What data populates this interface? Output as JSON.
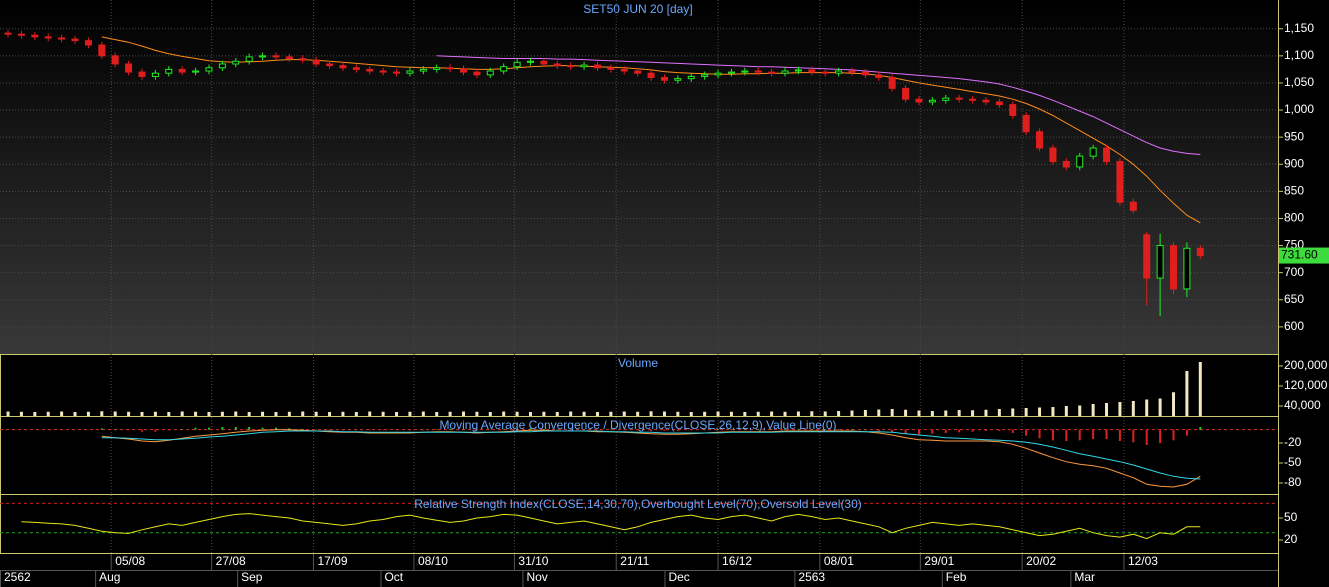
{
  "chart_data": [
    {
      "type": "candlestick",
      "title": "SET50 JUN 20   [day]",
      "grid": true,
      "xlim": [
        -0.6,
        94.8
      ],
      "xticks": [
        {
          "value": 7.7,
          "label": "05/08"
        },
        {
          "value": 15.2,
          "label": "27/08"
        },
        {
          "value": 22.8,
          "label": "17/09"
        },
        {
          "value": 30.3,
          "label": "08/10"
        },
        {
          "value": 37.8,
          "label": "31/10"
        },
        {
          "value": 45.4,
          "label": "21/11"
        },
        {
          "value": 53,
          "label": "16/12"
        },
        {
          "value": 60.6,
          "label": "08/01"
        },
        {
          "value": 68.1,
          "label": "29/01"
        },
        {
          "value": 75.7,
          "label": "20/02"
        },
        {
          "value": 83.3,
          "label": "12/03"
        }
      ],
      "period_ticks": [
        {
          "value": -0.6,
          "label": "2562"
        },
        {
          "value": 6.5,
          "label": "Aug"
        },
        {
          "value": 17.1,
          "label": "Sep"
        },
        {
          "value": 27.8,
          "label": "Oct"
        },
        {
          "value": 38.4,
          "label": "Nov"
        },
        {
          "value": 49,
          "label": "Dec"
        },
        {
          "value": 58.7,
          "label": "2563"
        },
        {
          "value": 69.7,
          "label": "Feb"
        },
        {
          "value": 79.3,
          "label": "Mar"
        }
      ],
      "ylim": [
        550,
        1203
      ],
      "yticks": [
        600,
        650,
        700,
        750,
        800,
        850,
        900,
        950,
        {
          "value": 1000,
          "label": "1,000"
        },
        {
          "value": 1050,
          "label": "1,050"
        },
        {
          "value": 1100,
          "label": "1,100"
        },
        {
          "value": 1150,
          "label": "1,150"
        }
      ],
      "up_color": "#22ee22",
      "down_color": "#e01e1e",
      "open": [
        1142,
        1140,
        1138,
        1135,
        1133,
        1131,
        1128,
        1120,
        1100,
        1085,
        1070,
        1062,
        1068,
        1075,
        1070,
        1072,
        1078,
        1085,
        1090,
        1098,
        1100,
        1098,
        1095,
        1092,
        1085,
        1082,
        1078,
        1075,
        1072,
        1070,
        1068,
        1072,
        1075,
        1078,
        1076,
        1070,
        1065,
        1072,
        1080,
        1088,
        1090,
        1085,
        1082,
        1080,
        1083,
        1078,
        1075,
        1072,
        1068,
        1060,
        1055,
        1058,
        1062,
        1065,
        1068,
        1070,
        1072,
        1070,
        1068,
        1072,
        1074,
        1070,
        1068,
        1072,
        1070,
        1065,
        1060,
        1040,
        1020,
        1015,
        1018,
        1022,
        1020,
        1018,
        1015,
        1010,
        990,
        960,
        930,
        905,
        895,
        915,
        930,
        905,
        830,
        770,
        690,
        750,
        670,
        745
      ],
      "high": [
        1148,
        1146,
        1144,
        1141,
        1139,
        1137,
        1134,
        1126,
        1106,
        1091,
        1076,
        1074,
        1081,
        1081,
        1078,
        1084,
        1091,
        1096,
        1104,
        1106,
        1106,
        1104,
        1101,
        1098,
        1091,
        1088,
        1084,
        1081,
        1078,
        1076,
        1078,
        1081,
        1084,
        1084,
        1082,
        1076,
        1078,
        1086,
        1094,
        1096,
        1096,
        1091,
        1088,
        1089,
        1089,
        1084,
        1081,
        1078,
        1074,
        1066,
        1064,
        1068,
        1071,
        1074,
        1076,
        1078,
        1078,
        1076,
        1078,
        1080,
        1080,
        1076,
        1078,
        1078,
        1076,
        1071,
        1066,
        1046,
        1026,
        1024,
        1028,
        1028,
        1026,
        1024,
        1021,
        1016,
        996,
        966,
        936,
        911,
        921,
        936,
        936,
        911,
        836,
        775,
        772,
        756,
        756,
        751
      ],
      "low": [
        1134,
        1132,
        1129,
        1127,
        1125,
        1122,
        1114,
        1094,
        1079,
        1064,
        1056,
        1056,
        1062,
        1064,
        1064,
        1066,
        1072,
        1079,
        1084,
        1092,
        1092,
        1089,
        1086,
        1079,
        1076,
        1072,
        1069,
        1066,
        1064,
        1062,
        1062,
        1066,
        1069,
        1070,
        1064,
        1059,
        1059,
        1066,
        1074,
        1082,
        1079,
        1076,
        1074,
        1074,
        1072,
        1069,
        1066,
        1062,
        1054,
        1049,
        1049,
        1052,
        1056,
        1059,
        1062,
        1064,
        1064,
        1062,
        1062,
        1066,
        1064,
        1062,
        1062,
        1064,
        1059,
        1054,
        1034,
        1014,
        1009,
        1009,
        1012,
        1014,
        1012,
        1009,
        1004,
        984,
        954,
        924,
        899,
        889,
        889,
        909,
        899,
        824,
        809,
        640,
        620,
        660,
        655,
        725
      ],
      "close": [
        1140,
        1138,
        1135,
        1133,
        1131,
        1128,
        1120,
        1100,
        1085,
        1070,
        1062,
        1068,
        1075,
        1070,
        1072,
        1078,
        1085,
        1090,
        1098,
        1100,
        1098,
        1095,
        1092,
        1085,
        1082,
        1078,
        1075,
        1072,
        1070,
        1068,
        1072,
        1075,
        1078,
        1076,
        1070,
        1065,
        1072,
        1080,
        1088,
        1090,
        1085,
        1082,
        1080,
        1083,
        1078,
        1075,
        1072,
        1068,
        1060,
        1055,
        1058,
        1062,
        1065,
        1068,
        1070,
        1072,
        1070,
        1068,
        1072,
        1074,
        1070,
        1068,
        1072,
        1070,
        1065,
        1060,
        1040,
        1020,
        1015,
        1018,
        1022,
        1020,
        1018,
        1015,
        1010,
        990,
        960,
        930,
        905,
        895,
        915,
        930,
        905,
        830,
        815,
        690,
        750,
        670,
        745,
        731.6
      ],
      "series": [
        {
          "color": "#ff8c1a",
          "values": [
            null,
            null,
            null,
            null,
            null,
            null,
            null,
            1135,
            1130,
            1125,
            1118,
            1110,
            1104,
            1099,
            1095,
            1091,
            1089,
            1088,
            1089,
            1090,
            1092,
            1093,
            1093,
            1092,
            1090,
            1088,
            1086,
            1084,
            1082,
            1080,
            1079,
            1078,
            1078,
            1077,
            1076,
            1075,
            1075,
            1076,
            1078,
            1080,
            1081,
            1082,
            1082,
            1081,
            1080,
            1079,
            1078,
            1076,
            1074,
            1071,
            1069,
            1068,
            1067,
            1066,
            1066,
            1067,
            1067,
            1068,
            1068,
            1069,
            1069,
            1069,
            1069,
            1068,
            1067,
            1064,
            1060,
            1055,
            1050,
            1046,
            1042,
            1038,
            1034,
            1030,
            1026,
            1020,
            1012,
            1002,
            990,
            976,
            962,
            948,
            934,
            918,
            900,
            878,
            852,
            828,
            806,
            792
          ]
        },
        {
          "color": "#e070ff",
          "values": [
            null,
            null,
            null,
            null,
            null,
            null,
            null,
            null,
            null,
            null,
            null,
            null,
            null,
            null,
            null,
            null,
            null,
            null,
            null,
            null,
            null,
            null,
            null,
            null,
            null,
            null,
            null,
            null,
            null,
            null,
            null,
            null,
            1100,
            1099,
            1098,
            1097,
            1096,
            1095,
            1095,
            1095,
            1095,
            1094,
            1094,
            1093,
            1092,
            1091,
            1090,
            1089,
            1088,
            1087,
            1086,
            1085,
            1084,
            1083,
            1082,
            1081,
            1080,
            1080,
            1079,
            1078,
            1077,
            1076,
            1075,
            1074,
            1072,
            1070,
            1068,
            1066,
            1064,
            1062,
            1060,
            1058,
            1055,
            1052,
            1048,
            1042,
            1035,
            1027,
            1018,
            1008,
            998,
            988,
            976,
            964,
            952,
            940,
            930,
            924,
            920,
            918
          ]
        }
      ],
      "last_price": {
        "value": 731.6,
        "label": "731.60"
      },
      "last_price_color": "#3ddc3d"
    },
    {
      "type": "bar",
      "title": "Volume",
      "grid": true,
      "color": "#f2e8c4",
      "ylim": [
        0,
        244000
      ],
      "yticks": [
        {
          "value": 40000,
          "label": "40,000"
        },
        {
          "value": 120000,
          "label": "120,000"
        },
        {
          "value": 200000,
          "label": "200,000"
        }
      ],
      "values": [
        18000,
        17000,
        16000,
        17000,
        18000,
        16000,
        17000,
        19000,
        18000,
        17000,
        16000,
        17000,
        16000,
        18000,
        17000,
        16000,
        17000,
        18000,
        16000,
        17000,
        16000,
        17000,
        18000,
        17000,
        16000,
        17000,
        16000,
        18000,
        17000,
        16000,
        17000,
        18000,
        16000,
        17000,
        18000,
        17000,
        16000,
        18000,
        17000,
        16000,
        17000,
        16000,
        18000,
        17000,
        16000,
        17000,
        18000,
        17000,
        19000,
        18000,
        17000,
        16000,
        17000,
        18000,
        17000,
        16000,
        17000,
        18000,
        17000,
        18000,
        19000,
        18000,
        20000,
        22000,
        24000,
        26000,
        28000,
        25000,
        22000,
        20000,
        22000,
        24000,
        23000,
        25000,
        28000,
        30000,
        32000,
        34000,
        36000,
        40000,
        42000,
        48000,
        52000,
        56000,
        60000,
        66000,
        70000,
        95000,
        180000,
        216000
      ]
    },
    {
      "type": "macd",
      "title": "Moving Average Convergence / Divergence(CLOSE,26,12,9),Value Line(0)",
      "grid": true,
      "ylim": [
        -96.5,
        19
      ],
      "yticks": [
        -20,
        -50,
        -80
      ],
      "value_line": 0,
      "series": [
        {
          "color": "#ff9a40",
          "values": [
            null,
            null,
            null,
            null,
            null,
            null,
            null,
            -10,
            -12,
            -14,
            -17,
            -18,
            -16,
            -13,
            -10,
            -8,
            -6,
            -4,
            -2,
            -1,
            0,
            0,
            -1,
            -2,
            -3,
            -4,
            -4,
            -5,
            -5,
            -5,
            -5,
            -4,
            -3,
            -3,
            -4,
            -5,
            -4,
            -3,
            -2,
            -1,
            -1,
            -2,
            -2,
            -2,
            -3,
            -3,
            -4,
            -5,
            -6,
            -7,
            -7,
            -6,
            -5,
            -4,
            -3,
            -3,
            -3,
            -3,
            -2,
            -2,
            -2,
            -2,
            -2,
            -2,
            -3,
            -5,
            -8,
            -12,
            -15,
            -16,
            -17,
            -17,
            -17,
            -17,
            -18,
            -22,
            -28,
            -35,
            -42,
            -48,
            -52,
            -54,
            -58,
            -65,
            -72,
            -82,
            -85,
            -86,
            -82,
            -70
          ]
        },
        {
          "color": "#33d6e6",
          "values": [
            null,
            null,
            null,
            null,
            null,
            null,
            null,
            -12,
            -12,
            -13,
            -14,
            -15,
            -15,
            -14,
            -13,
            -11,
            -10,
            -8,
            -6,
            -4,
            -3,
            -2,
            -2,
            -2,
            -2,
            -3,
            -3,
            -4,
            -4,
            -4,
            -4,
            -4,
            -4,
            -4,
            -4,
            -4,
            -4,
            -4,
            -3,
            -3,
            -2,
            -2,
            -2,
            -2,
            -2,
            -3,
            -3,
            -4,
            -4,
            -5,
            -5,
            -5,
            -5,
            -5,
            -4,
            -4,
            -4,
            -4,
            -3,
            -3,
            -3,
            -3,
            -3,
            -3,
            -3,
            -3,
            -4,
            -6,
            -8,
            -10,
            -12,
            -13,
            -14,
            -15,
            -16,
            -17,
            -19,
            -22,
            -26,
            -31,
            -36,
            -40,
            -44,
            -48,
            -53,
            -59,
            -65,
            -70,
            -73,
            -74
          ]
        }
      ],
      "histogram": {
        "up_color": "#22cc22",
        "down_color": "#dd2222",
        "values": [
          null,
          null,
          null,
          null,
          null,
          null,
          null,
          2,
          0,
          -1,
          -3,
          -3,
          -1,
          1,
          3,
          3,
          4,
          4,
          4,
          3,
          3,
          2,
          1,
          0,
          -1,
          -1,
          -1,
          -1,
          -1,
          -1,
          -1,
          0,
          1,
          1,
          0,
          -1,
          0,
          1,
          1,
          2,
          1,
          0,
          0,
          0,
          -1,
          0,
          -1,
          -1,
          -2,
          -2,
          -2,
          -1,
          0,
          1,
          1,
          1,
          1,
          1,
          1,
          1,
          1,
          1,
          1,
          1,
          0,
          -2,
          -4,
          -6,
          -7,
          -6,
          -5,
          -4,
          -3,
          -2,
          -2,
          -5,
          -9,
          -13,
          -16,
          -17,
          -16,
          -14,
          -14,
          -17,
          -19,
          -23,
          -20,
          -16,
          -9,
          4
        ]
      }
    },
    {
      "type": "line",
      "title": "Relative Strength Index(CLOSE,14,30,70),Overbought Level(70),Oversold Level(30)",
      "grid": true,
      "ylim": [
        2.3,
        81.4
      ],
      "yticks": [
        50,
        20
      ],
      "overbought": 70,
      "overbought_color": "#cc2222",
      "oversold": 30,
      "oversold_color": "#22aa22",
      "series": [
        {
          "color": "#e6e619",
          "values": [
            null,
            45,
            44,
            43,
            42,
            40,
            36,
            32,
            30,
            29,
            34,
            38,
            42,
            40,
            44,
            48,
            52,
            55,
            56,
            54,
            52,
            50,
            46,
            44,
            42,
            40,
            42,
            46,
            48,
            52,
            54,
            50,
            47,
            44,
            46,
            50,
            52,
            55,
            54,
            50,
            46,
            42,
            44,
            46,
            42,
            38,
            34,
            38,
            44,
            48,
            52,
            54,
            50,
            48,
            52,
            54,
            50,
            46,
            52,
            55,
            52,
            48,
            50,
            46,
            42,
            38,
            30,
            36,
            40,
            44,
            42,
            40,
            42,
            40,
            38,
            34,
            30,
            26,
            28,
            32,
            36,
            30,
            26,
            24,
            28,
            22,
            30,
            28,
            38,
            38
          ]
        }
      ]
    }
  ]
}
